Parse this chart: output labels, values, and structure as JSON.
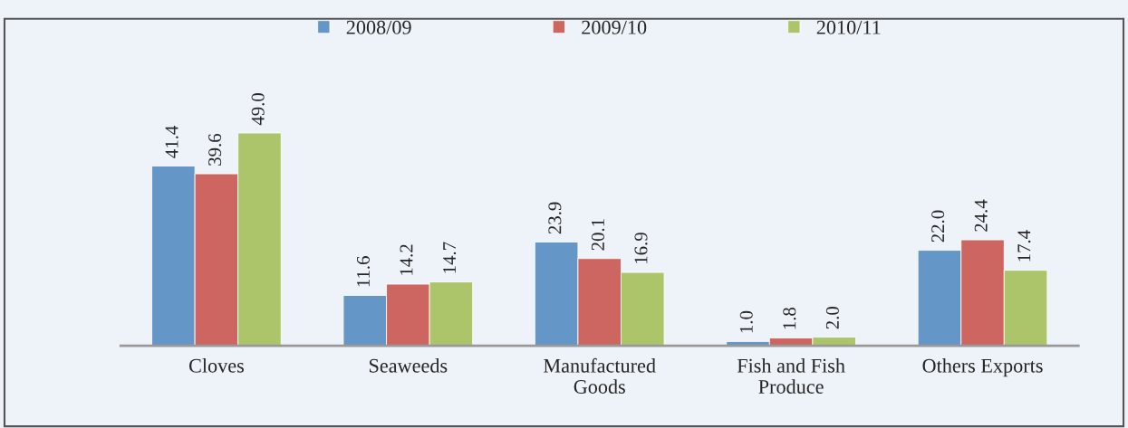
{
  "chart_data": {
    "type": "bar",
    "categories": [
      "Cloves",
      "Seaweeds",
      "Manufactured\nGoods",
      "Fish and Fish\nProduce",
      "Others Exports"
    ],
    "series": [
      {
        "name": "2008/09",
        "color": "#6496c8",
        "values": [
          41.4,
          11.6,
          23.9,
          1.0,
          22.0
        ],
        "value_labels": [
          "41.4",
          "11.6",
          "23.9",
          "1.0",
          "22.0"
        ]
      },
      {
        "name": "2009/10",
        "color": "#cd6660",
        "values": [
          39.6,
          14.2,
          20.1,
          1.8,
          24.4
        ],
        "value_labels": [
          "39.6",
          "14.2",
          "20.1",
          "1.8",
          "24.4"
        ]
      },
      {
        "name": "2010/11",
        "color": "#acc46a",
        "values": [
          49.0,
          14.7,
          16.9,
          2.0,
          17.4
        ],
        "value_labels": [
          "49.0",
          "14.7",
          "16.9",
          "2.0",
          "17.4"
        ]
      }
    ],
    "legend": "top",
    "tick_labels": "x"
  }
}
